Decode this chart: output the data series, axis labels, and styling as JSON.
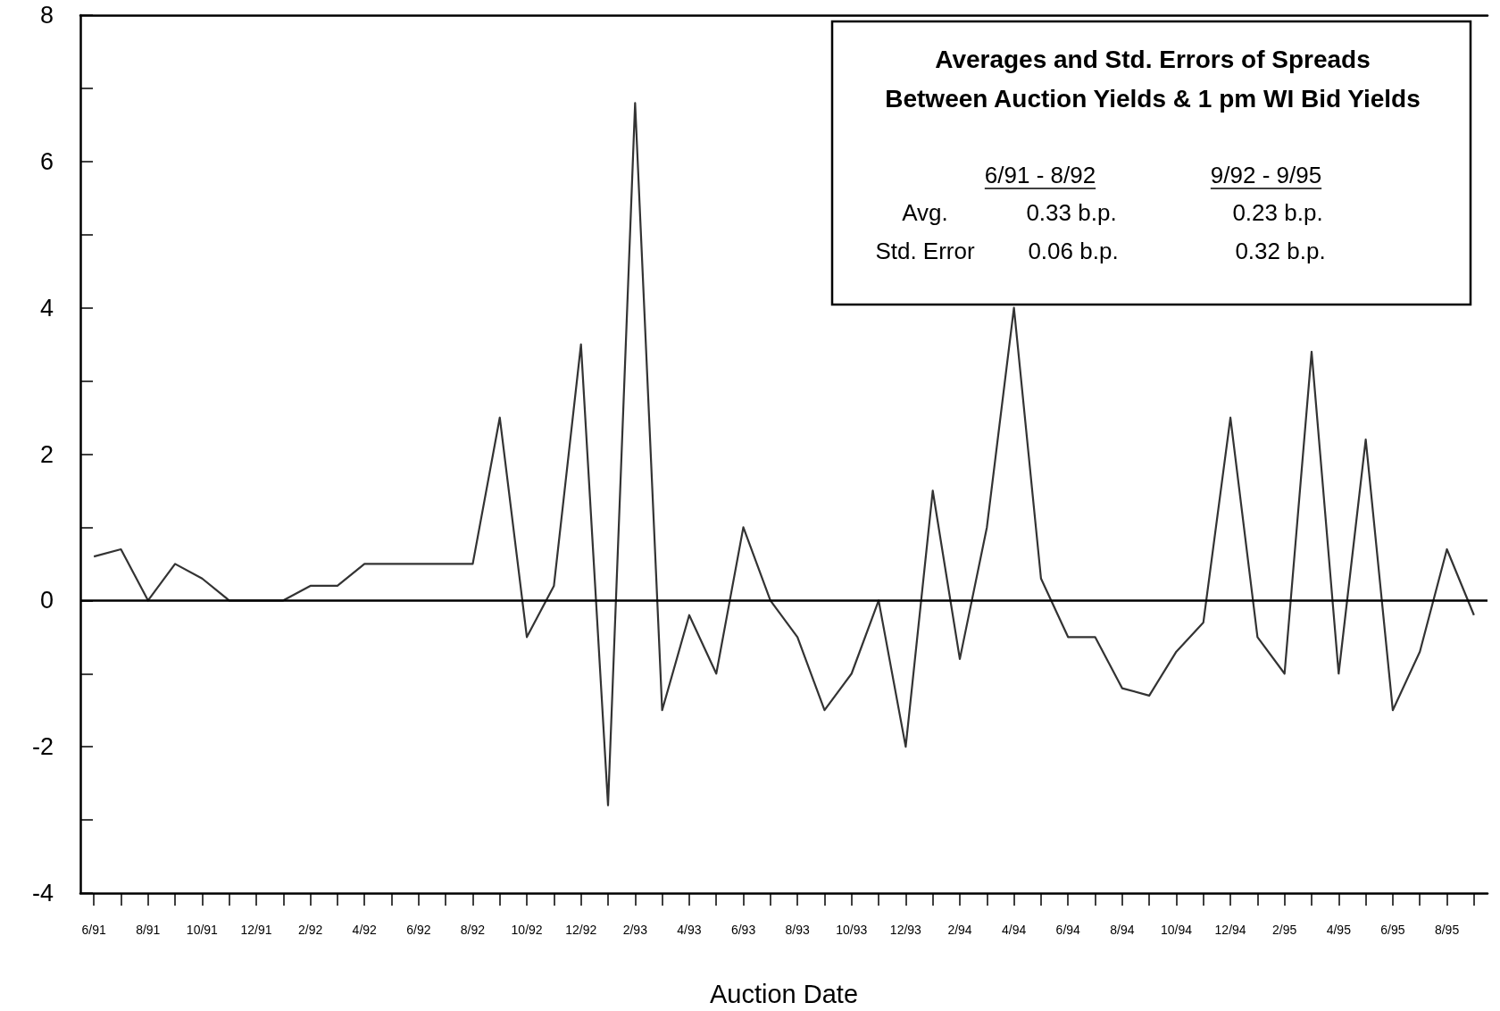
{
  "chart_data": {
    "type": "line",
    "xlabel": "Auction Date",
    "categories": [
      "6/91",
      null,
      "8/91",
      null,
      "10/91",
      null,
      "12/91",
      null,
      "2/92",
      null,
      "4/92",
      null,
      "6/92",
      null,
      "8/92",
      null,
      "10/92",
      null,
      "12/92",
      null,
      "2/93",
      null,
      "4/93",
      null,
      "6/93",
      null,
      "8/93",
      null,
      "10/93",
      null,
      "12/93",
      null,
      "2/94",
      null,
      "4/94",
      null,
      "6/94",
      null,
      "8/94",
      null,
      "10/94",
      null,
      "12/94",
      null,
      "2/95",
      null,
      "4/95",
      null,
      "6/95",
      null,
      "8/95",
      null
    ],
    "series": [
      {
        "color": "#333333",
        "values": [
          0.6,
          0.7,
          0,
          0.5,
          0.3,
          0,
          0,
          0,
          0.2,
          0.2,
          0.5,
          0.5,
          0.5,
          0.5,
          0.5,
          2.5,
          -0.5,
          0.2,
          3.5,
          -2.8,
          6.8,
          -1.5,
          -0.2,
          -1,
          1,
          0,
          -0.5,
          -1.5,
          -1,
          0,
          -2,
          1.5,
          -0.8,
          1,
          4,
          0.3,
          -0.5,
          -0.5,
          -1.2,
          -1.3,
          -0.7,
          -0.3,
          2.5,
          -0.5,
          -1,
          3.4,
          -1,
          2.2,
          -1.5,
          -0.7,
          0.7,
          -0.2
        ]
      }
    ],
    "ylim": [
      -4,
      8
    ],
    "yticks": [
      -4,
      {
        "value": -3,
        "label": null
      },
      -2,
      {
        "value": -1,
        "label": null
      },
      0,
      {
        "value": 1,
        "label": null
      },
      2,
      {
        "value": 3,
        "label": null
      },
      4,
      {
        "value": 5,
        "label": null
      },
      6,
      {
        "value": 7,
        "label": null
      },
      8
    ],
    "ref_lines": [
      {
        "axis": "y",
        "value": 0,
        "color": "#000000"
      }
    ],
    "marker": "none",
    "line_style": "solid",
    "grid": false,
    "annotations": [
      "Averages and Std. Errors of Spreads",
      "Between Auction Yields & 1 pm WI Bid Yields",
      "6/91 - 8/92",
      "9/92 - 9/95",
      "Avg.",
      "0.33 b.p.",
      "0.23 b.p.",
      "Std. Error",
      "0.06 b.p.",
      "0.32 b.p."
    ]
  }
}
